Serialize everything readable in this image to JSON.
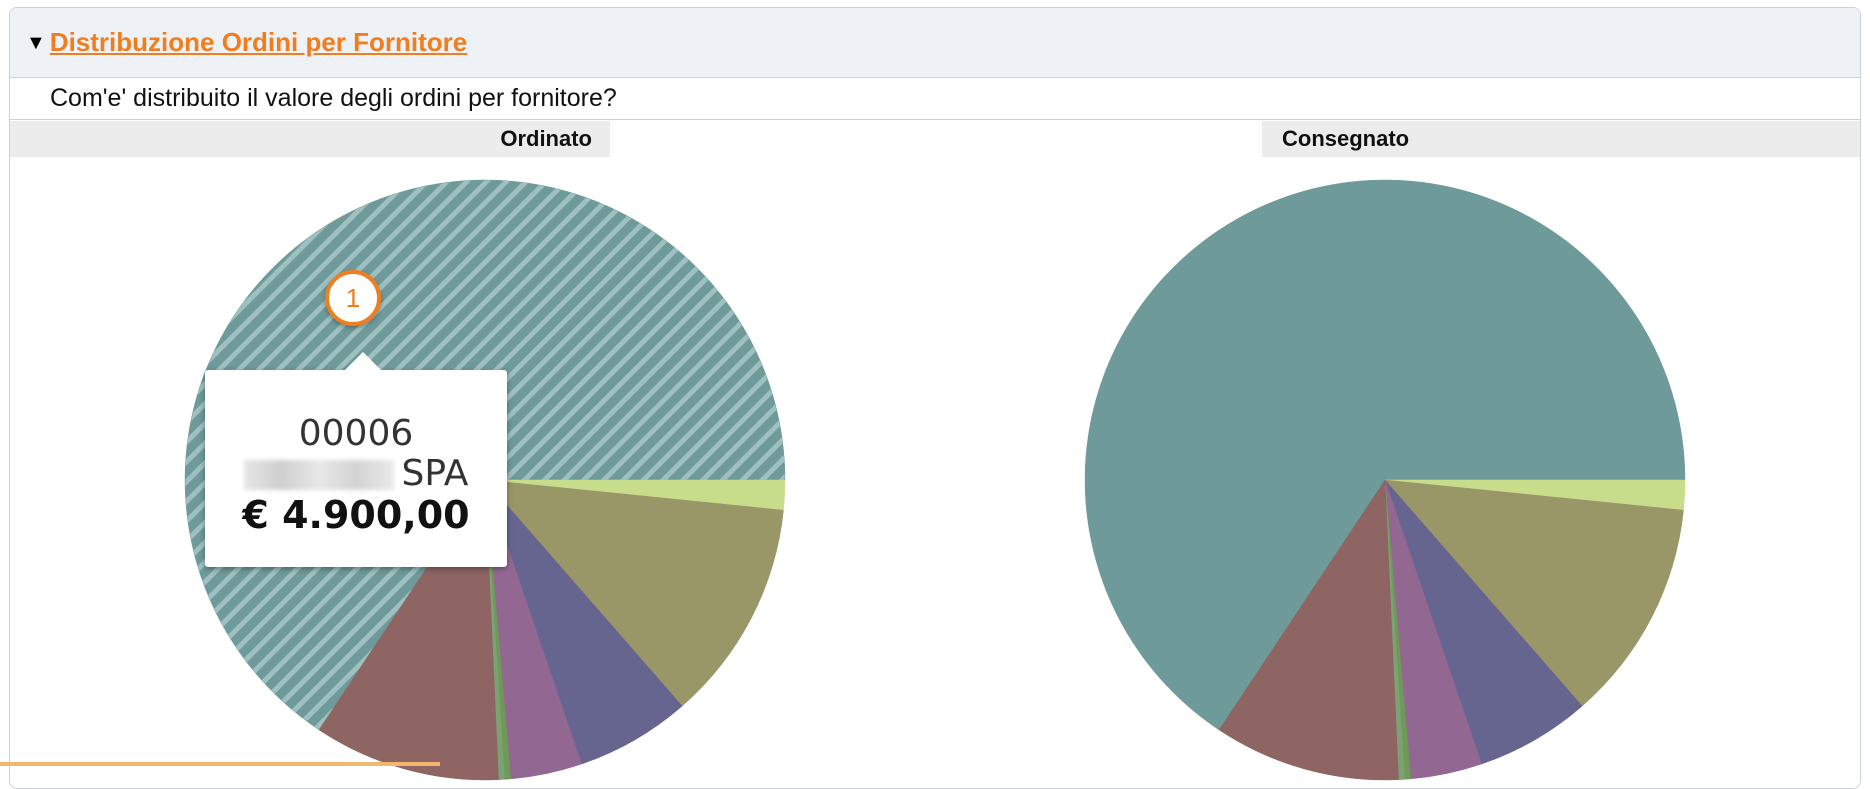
{
  "panel": {
    "title": "Distribuzione Ordini per Fornitore",
    "toggle_icon": "triangle-down-icon",
    "question": "Com'e' distribuito il valore degli ordini per fornitore?"
  },
  "tooltip": {
    "code": "00006",
    "name_suffix": "SPA",
    "value": "€ 4.900,00",
    "badge": "1"
  },
  "chart_data": [
    {
      "type": "pie",
      "title": "Ordinato",
      "labels": [
        "00006",
        "",
        "",
        "",
        "",
        "",
        "",
        ""
      ],
      "values": [
        61.4,
        1.5,
        11.2,
        5.8,
        3.6,
        0.3,
        0.3,
        9.4
      ],
      "colors": [
        "#6f9a9a",
        "#c7dd8c",
        "#999668",
        "#656590",
        "#926893",
        "#6e9a55",
        "#7aa275",
        "#8e6563"
      ],
      "highlighted_index": 0
    },
    {
      "type": "pie",
      "title": "Consegnato",
      "labels": [
        "",
        "",
        "",
        "",
        "",
        "",
        "",
        ""
      ],
      "values": [
        61.4,
        1.5,
        11.2,
        5.8,
        3.6,
        0.3,
        0.3,
        9.4
      ],
      "colors": [
        "#6f9a9a",
        "#c7dd8c",
        "#999668",
        "#656590",
        "#926893",
        "#6e9a55",
        "#7aa275",
        "#8e6563"
      ]
    }
  ]
}
